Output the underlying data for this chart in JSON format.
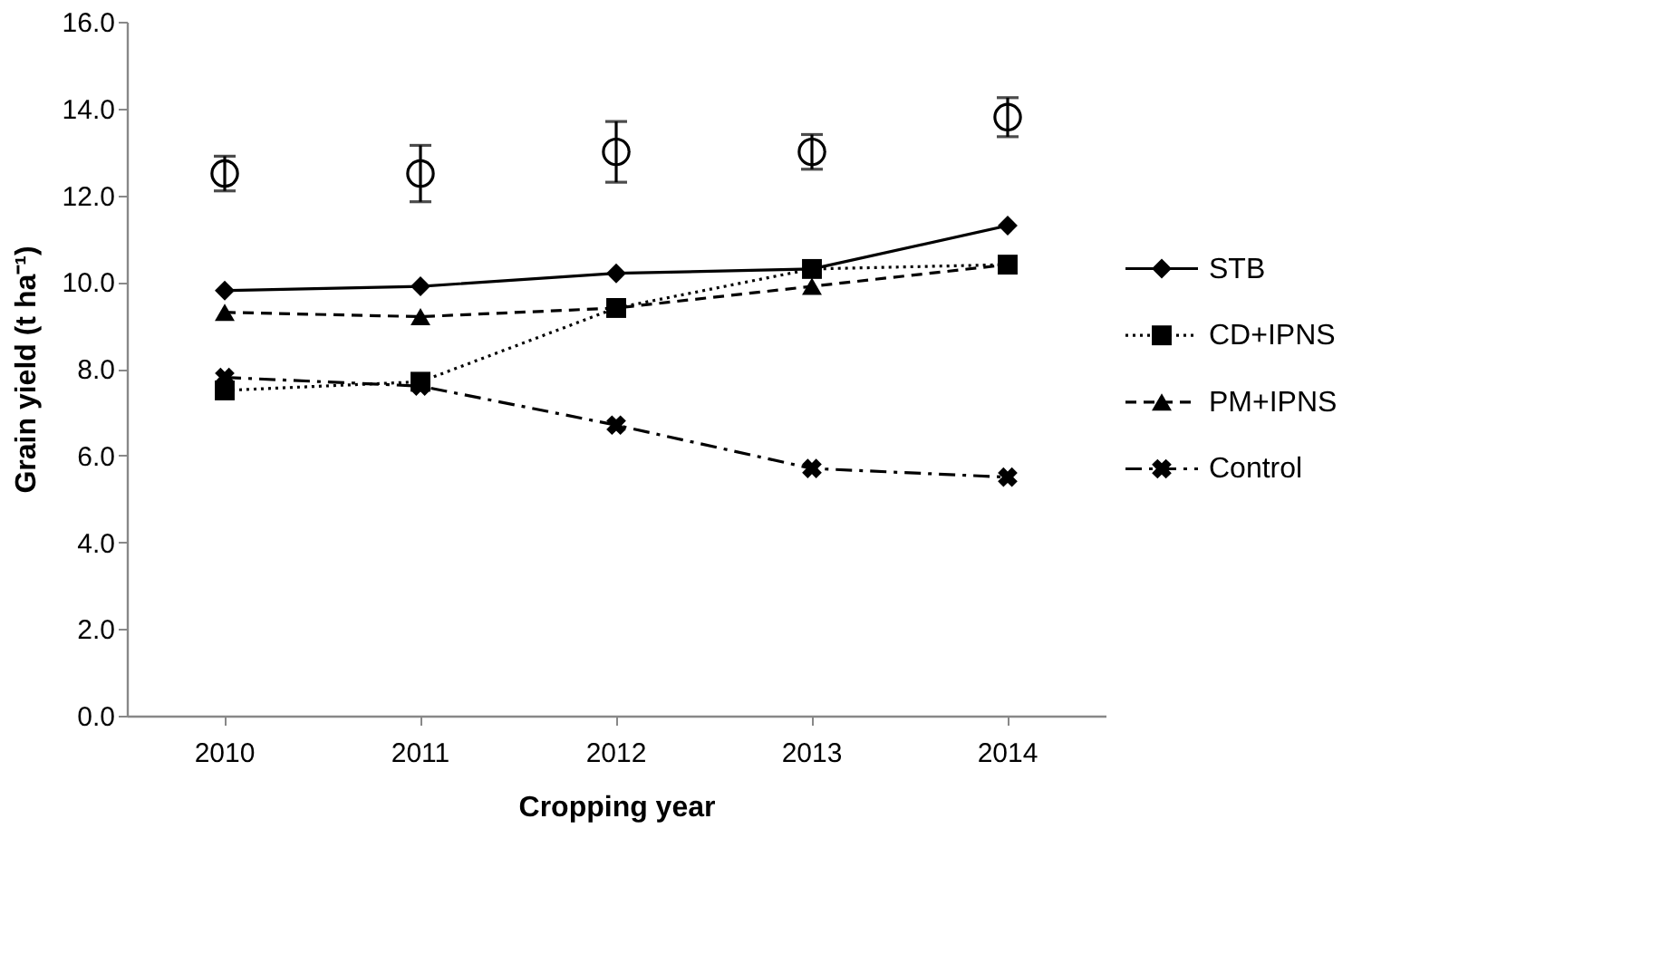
{
  "chart_data": {
    "type": "line",
    "xlabel": "Cropping year",
    "ylabel": "Grain yield (t ha⁻¹)",
    "categories": [
      "2010",
      "2011",
      "2012",
      "2013",
      "2014"
    ],
    "ylim": [
      0,
      16
    ],
    "yticks": [
      {
        "value": 0,
        "label": "0.0"
      },
      {
        "value": 2,
        "label": "2.0"
      },
      {
        "value": 4,
        "label": "4.0"
      },
      {
        "value": 6,
        "label": "6.0"
      },
      {
        "value": 8,
        "label": "8.0"
      },
      {
        "value": 10,
        "label": "10.0"
      },
      {
        "value": 12,
        "label": "12.0"
      },
      {
        "value": 14,
        "label": "14.0"
      },
      {
        "value": 16,
        "label": "16.0"
      }
    ],
    "grid": false,
    "legend": "right",
    "series": [
      {
        "name": "STB",
        "color": "#000000",
        "values": [
          9.8,
          9.9,
          10.2,
          10.3,
          11.3
        ],
        "marker": "diamond",
        "line_style": "solid"
      },
      {
        "name": "CD+IPNS",
        "color": "#000000",
        "values": [
          7.5,
          7.7,
          9.4,
          10.3,
          10.4
        ],
        "marker": "square",
        "line_style": "dotted"
      },
      {
        "name": "PM+IPNS",
        "color": "#000000",
        "values": [
          9.3,
          9.2,
          9.4,
          9.9,
          10.4
        ],
        "marker": "triangle",
        "line_style": "dashed"
      },
      {
        "name": "Control",
        "color": "#000000",
        "values": [
          7.8,
          7.6,
          6.7,
          5.7,
          5.5
        ],
        "marker": "cross",
        "line_style": "dashdot"
      },
      {
        "type": "scatter",
        "color": "#000000",
        "values": [
          12.5,
          12.5,
          13.0,
          13.0,
          13.8
        ],
        "errors": [
          0.4,
          0.65,
          0.7,
          0.4,
          0.45
        ],
        "marker": "circle"
      }
    ]
  }
}
